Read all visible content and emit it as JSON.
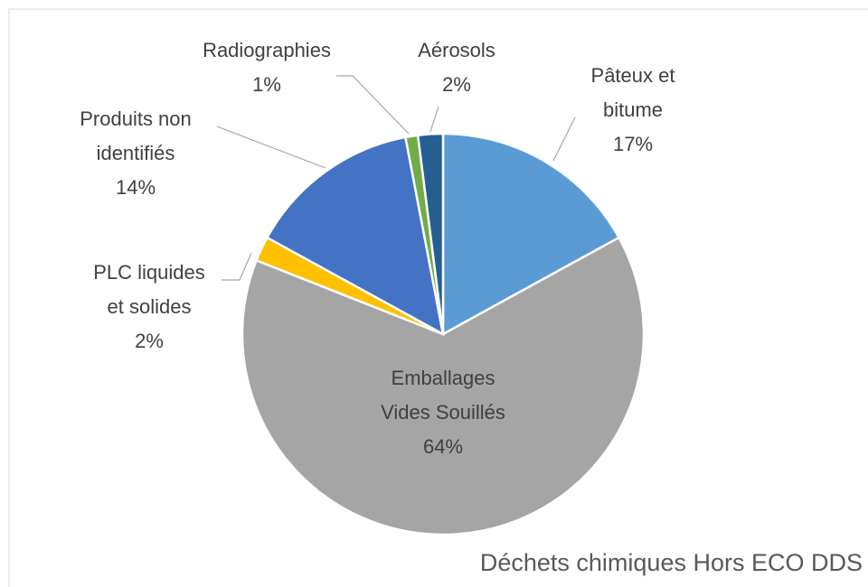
{
  "chart_data": {
    "type": "pie",
    "title": "Déchets chimiques Hors ECO DDS",
    "categories": [
      "Pâteux et bitume",
      "Emballages Vides Souillés",
      "PLC liquides et solides",
      "Produits non identifiés",
      "Radiographies",
      "Aérosols"
    ],
    "values": [
      17,
      64,
      2,
      14,
      1,
      2
    ],
    "value_labels": [
      "17%",
      "64%",
      "2%",
      "14%",
      "1%",
      "2%"
    ],
    "colors": [
      "#5b9bd5",
      "#a5a5a5",
      "#ffc000",
      "#4472c4",
      "#70ad47",
      "#255e91"
    ]
  }
}
